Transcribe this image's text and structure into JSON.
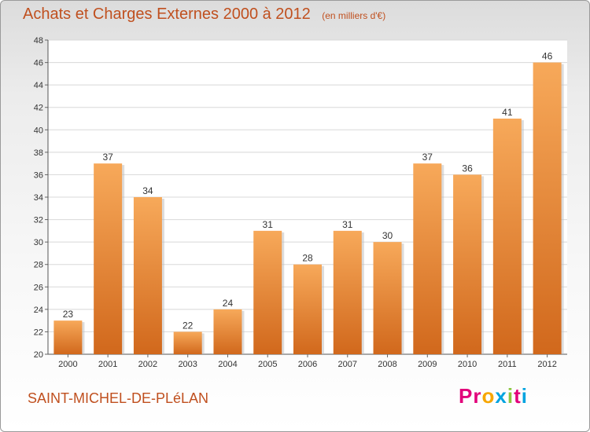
{
  "header": {
    "title": "Achats et Charges Externes 2000 à 2012",
    "unit": "(en milliers d'€)"
  },
  "footer": {
    "commune": "SAINT-MICHEL-DE-PLéLAN",
    "brand": "Proxiti",
    "brand_colors": [
      "#e2007a",
      "#e2007a",
      "#f7a600",
      "#00a3e0",
      "#8cc63f",
      "#e2007a",
      "#00a3e0"
    ]
  },
  "colors": {
    "bar_top": "#f7a95a",
    "bar_bottom": "#d1681c",
    "accent": "#c0501f",
    "grid": "#d8d8d8"
  },
  "chart_data": {
    "type": "bar",
    "categories": [
      "2000",
      "2001",
      "2002",
      "2003",
      "2004",
      "2005",
      "2006",
      "2007",
      "2008",
      "2009",
      "2010",
      "2011",
      "2012"
    ],
    "values": [
      23,
      37,
      34,
      22,
      24,
      31,
      28,
      31,
      30,
      37,
      36,
      41,
      46
    ],
    "title": "Achats et Charges Externes 2000 à 2012",
    "ylim": [
      20,
      48
    ],
    "yticks": [
      20,
      22,
      24,
      26,
      28,
      30,
      32,
      34,
      36,
      38,
      40,
      42,
      44,
      46,
      48
    ],
    "grid": true,
    "data_labels": true
  }
}
